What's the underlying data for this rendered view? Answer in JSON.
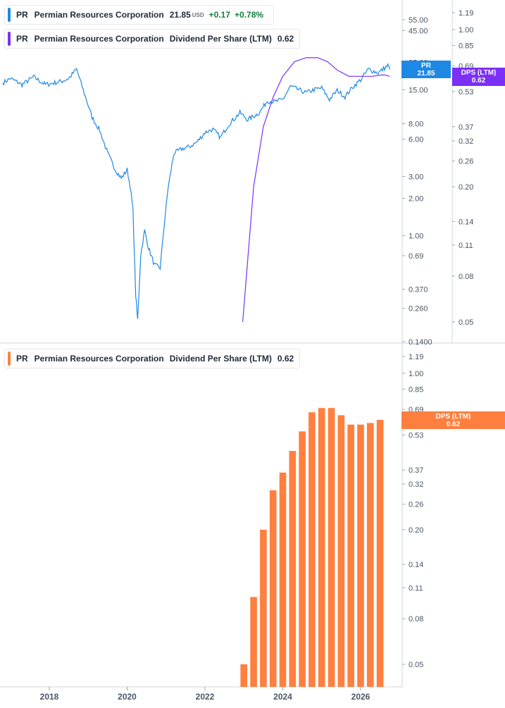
{
  "legend_price": {
    "ticker": "PR",
    "name": "Permian Resources Corporation",
    "price": "21.85",
    "currency": "USD",
    "change": "+0.17",
    "change_pct": "+0.78%",
    "color": "#1e88e5"
  },
  "legend_dps_top": {
    "ticker": "PR",
    "name": "Permian Resources Corporation",
    "metric": "Dividend Per Share (LTM)",
    "value": "0.62",
    "color": "#7b2ff7"
  },
  "legend_dps_bottom": {
    "ticker": "PR",
    "name": "Permian Resources Corporation",
    "metric": "Dividend Per Share (LTM)",
    "value": "0.62",
    "color": "#ff7f3f"
  },
  "tags": {
    "price_label": "PR",
    "price_value": "21.85",
    "dps_label": "DPS (LTM)",
    "dps_value": "0.62",
    "dps_bottom_label": "DPS (LTM)",
    "dps_bottom_value": "0.62"
  },
  "chart_data": [
    {
      "type": "line",
      "title": "",
      "scale": "log",
      "series": [
        {
          "name": "PR",
          "axis": "left",
          "color": "#1e88e5",
          "points": [
            [
              2016.8,
              17
            ],
            [
              2017.0,
              18.5
            ],
            [
              2017.3,
              16.5
            ],
            [
              2017.6,
              19
            ],
            [
              2017.9,
              16.5
            ],
            [
              2018.3,
              17.5
            ],
            [
              2018.5,
              18.5
            ],
            [
              2018.7,
              22
            ],
            [
              2018.9,
              14
            ],
            [
              2019.1,
              9
            ],
            [
              2019.3,
              7
            ],
            [
              2019.5,
              4.6
            ],
            [
              2019.7,
              3.4
            ],
            [
              2019.85,
              2.9
            ],
            [
              2020.0,
              3.4
            ],
            [
              2020.08,
              2.5
            ],
            [
              2020.15,
              1.6
            ],
            [
              2020.22,
              0.33
            ],
            [
              2020.27,
              0.21
            ],
            [
              2020.35,
              0.7
            ],
            [
              2020.45,
              1.1
            ],
            [
              2020.55,
              0.8
            ],
            [
              2020.7,
              0.58
            ],
            [
              2020.85,
              0.55
            ],
            [
              2020.95,
              1.2
            ],
            [
              2021.05,
              2.4
            ],
            [
              2021.2,
              4.6
            ],
            [
              2021.4,
              5.0
            ],
            [
              2021.6,
              5.2
            ],
            [
              2021.8,
              5.7
            ],
            [
              2022.0,
              6.8
            ],
            [
              2022.2,
              7.2
            ],
            [
              2022.4,
              6.2
            ],
            [
              2022.6,
              7.8
            ],
            [
              2022.9,
              9.8
            ],
            [
              2023.1,
              8.6
            ],
            [
              2023.4,
              9.8
            ],
            [
              2023.6,
              12.2
            ],
            [
              2023.8,
              12.0
            ],
            [
              2024.0,
              12.5
            ],
            [
              2024.2,
              16.0
            ],
            [
              2024.4,
              15.0
            ],
            [
              2024.6,
              14.2
            ],
            [
              2024.8,
              15.0
            ],
            [
              2025.0,
              15.5
            ],
            [
              2025.2,
              12.5
            ],
            [
              2025.4,
              14.8
            ],
            [
              2025.6,
              13.2
            ],
            [
              2025.8,
              15.8
            ],
            [
              2026.0,
              18.0
            ],
            [
              2026.2,
              22.0
            ],
            [
              2026.45,
              20.5
            ],
            [
              2026.7,
              23.5
            ],
            [
              2026.75,
              21.85
            ]
          ]
        },
        {
          "name": "DPS (LTM)",
          "axis": "right",
          "color": "#7b2ff7",
          "points": [
            [
              2022.97,
              0.05
            ],
            [
              2023.25,
              0.2
            ],
            [
              2023.5,
              0.37
            ],
            [
              2023.75,
              0.5
            ],
            [
              2024.0,
              0.62
            ],
            [
              2024.3,
              0.72
            ],
            [
              2024.6,
              0.75
            ],
            [
              2024.9,
              0.75
            ],
            [
              2025.15,
              0.72
            ],
            [
              2025.4,
              0.66
            ],
            [
              2025.7,
              0.62
            ],
            [
              2026.0,
              0.62
            ],
            [
              2026.3,
              0.62
            ],
            [
              2026.6,
              0.63
            ],
            [
              2026.75,
              0.62
            ]
          ]
        }
      ],
      "left_axis": {
        "ticks": [
          "55.00",
          "45.00",
          "25.00",
          "15.00",
          "8.00",
          "6.00",
          "3.00",
          "2.00",
          "1.00",
          "0.69",
          "0.370",
          "0.260",
          "0.1400"
        ],
        "values": [
          55,
          45,
          25,
          15,
          8,
          6,
          3,
          2,
          1,
          0.69,
          0.37,
          0.26,
          0.14
        ]
      },
      "right_axis": {
        "ticks": [
          "1.19",
          "1.00",
          "0.85",
          "0.69",
          "0.53",
          "0.37",
          "0.32",
          "0.26",
          "0.20",
          "0.14",
          "0.11",
          "0.08",
          "0.05"
        ],
        "values": [
          1.19,
          1.0,
          0.85,
          0.69,
          0.53,
          0.37,
          0.32,
          0.26,
          0.2,
          0.14,
          0.11,
          0.08,
          0.05
        ]
      }
    },
    {
      "type": "bar",
      "title": "",
      "scale": "log",
      "color": "#ff7f3f",
      "series": [
        {
          "name": "Dividend Per Share (LTM)",
          "x": [
            2023.0,
            2023.25,
            2023.5,
            2023.75,
            2024.0,
            2024.25,
            2024.5,
            2024.75,
            2025.0,
            2025.25,
            2025.5,
            2025.75,
            2026.0,
            2026.25,
            2026.5
          ],
          "values": [
            0.05,
            0.1,
            0.2,
            0.3,
            0.36,
            0.45,
            0.55,
            0.67,
            0.7,
            0.7,
            0.65,
            0.59,
            0.59,
            0.6,
            0.62
          ]
        }
      ],
      "right_axis": {
        "ticks": [
          "1.19",
          "1.00",
          "0.85",
          "0.69",
          "0.53",
          "0.37",
          "0.32",
          "0.26",
          "0.20",
          "0.14",
          "0.11",
          "0.08",
          "0.05"
        ],
        "values": [
          1.19,
          1.0,
          0.85,
          0.69,
          0.53,
          0.37,
          0.32,
          0.26,
          0.2,
          0.14,
          0.11,
          0.08,
          0.05
        ]
      },
      "x_axis": {
        "ticks": [
          "2018",
          "2020",
          "2022",
          "2024",
          "2026"
        ],
        "values": [
          2018,
          2020,
          2022,
          2024,
          2026
        ]
      }
    }
  ]
}
